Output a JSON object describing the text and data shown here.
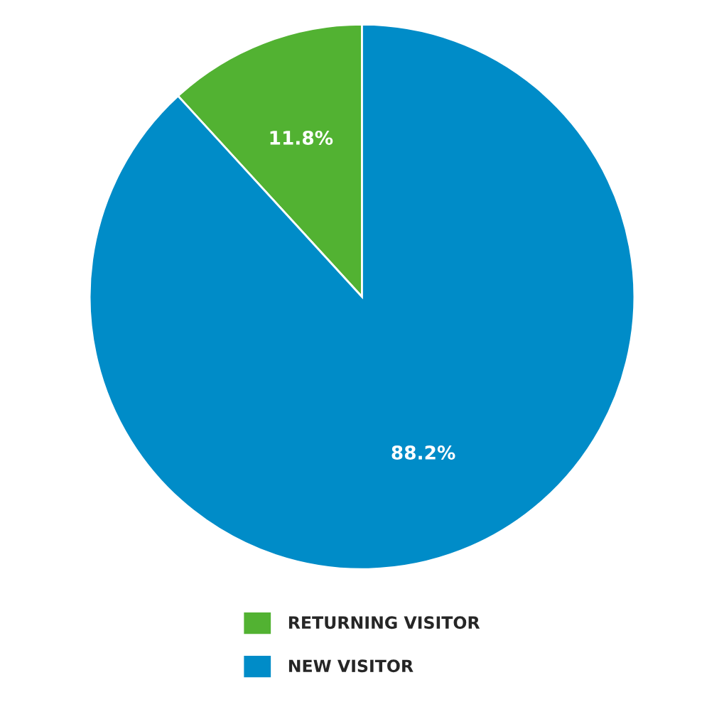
{
  "chart_data": {
    "type": "pie",
    "categories": [
      "RETURNING VISITOR",
      "NEW VISITOR"
    ],
    "values": [
      11.8,
      88.2
    ],
    "value_labels": [
      "11.8%",
      "88.2%"
    ],
    "colors": [
      "#52b232",
      "#008cc8"
    ],
    "legend": "bottom"
  }
}
